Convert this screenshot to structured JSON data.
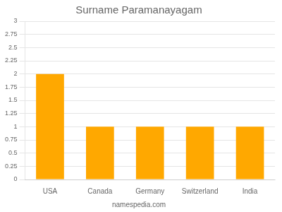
{
  "chart_data": {
    "type": "bar",
    "title": "Surname Paramanayagam",
    "annotations": [
      "namespedia.com"
    ],
    "categories": [
      "USA",
      "Canada",
      "Germany",
      "Switzerland",
      "India"
    ],
    "values": [
      2,
      1,
      1,
      1,
      1
    ],
    "color": "#FFA800",
    "ylim": [
      0,
      3
    ],
    "yticks": [
      0,
      0.25,
      0.5,
      0.75,
      1,
      1.25,
      1.5,
      1.75,
      2,
      2.25,
      2.5,
      2.75,
      3
    ],
    "grid": true
  }
}
